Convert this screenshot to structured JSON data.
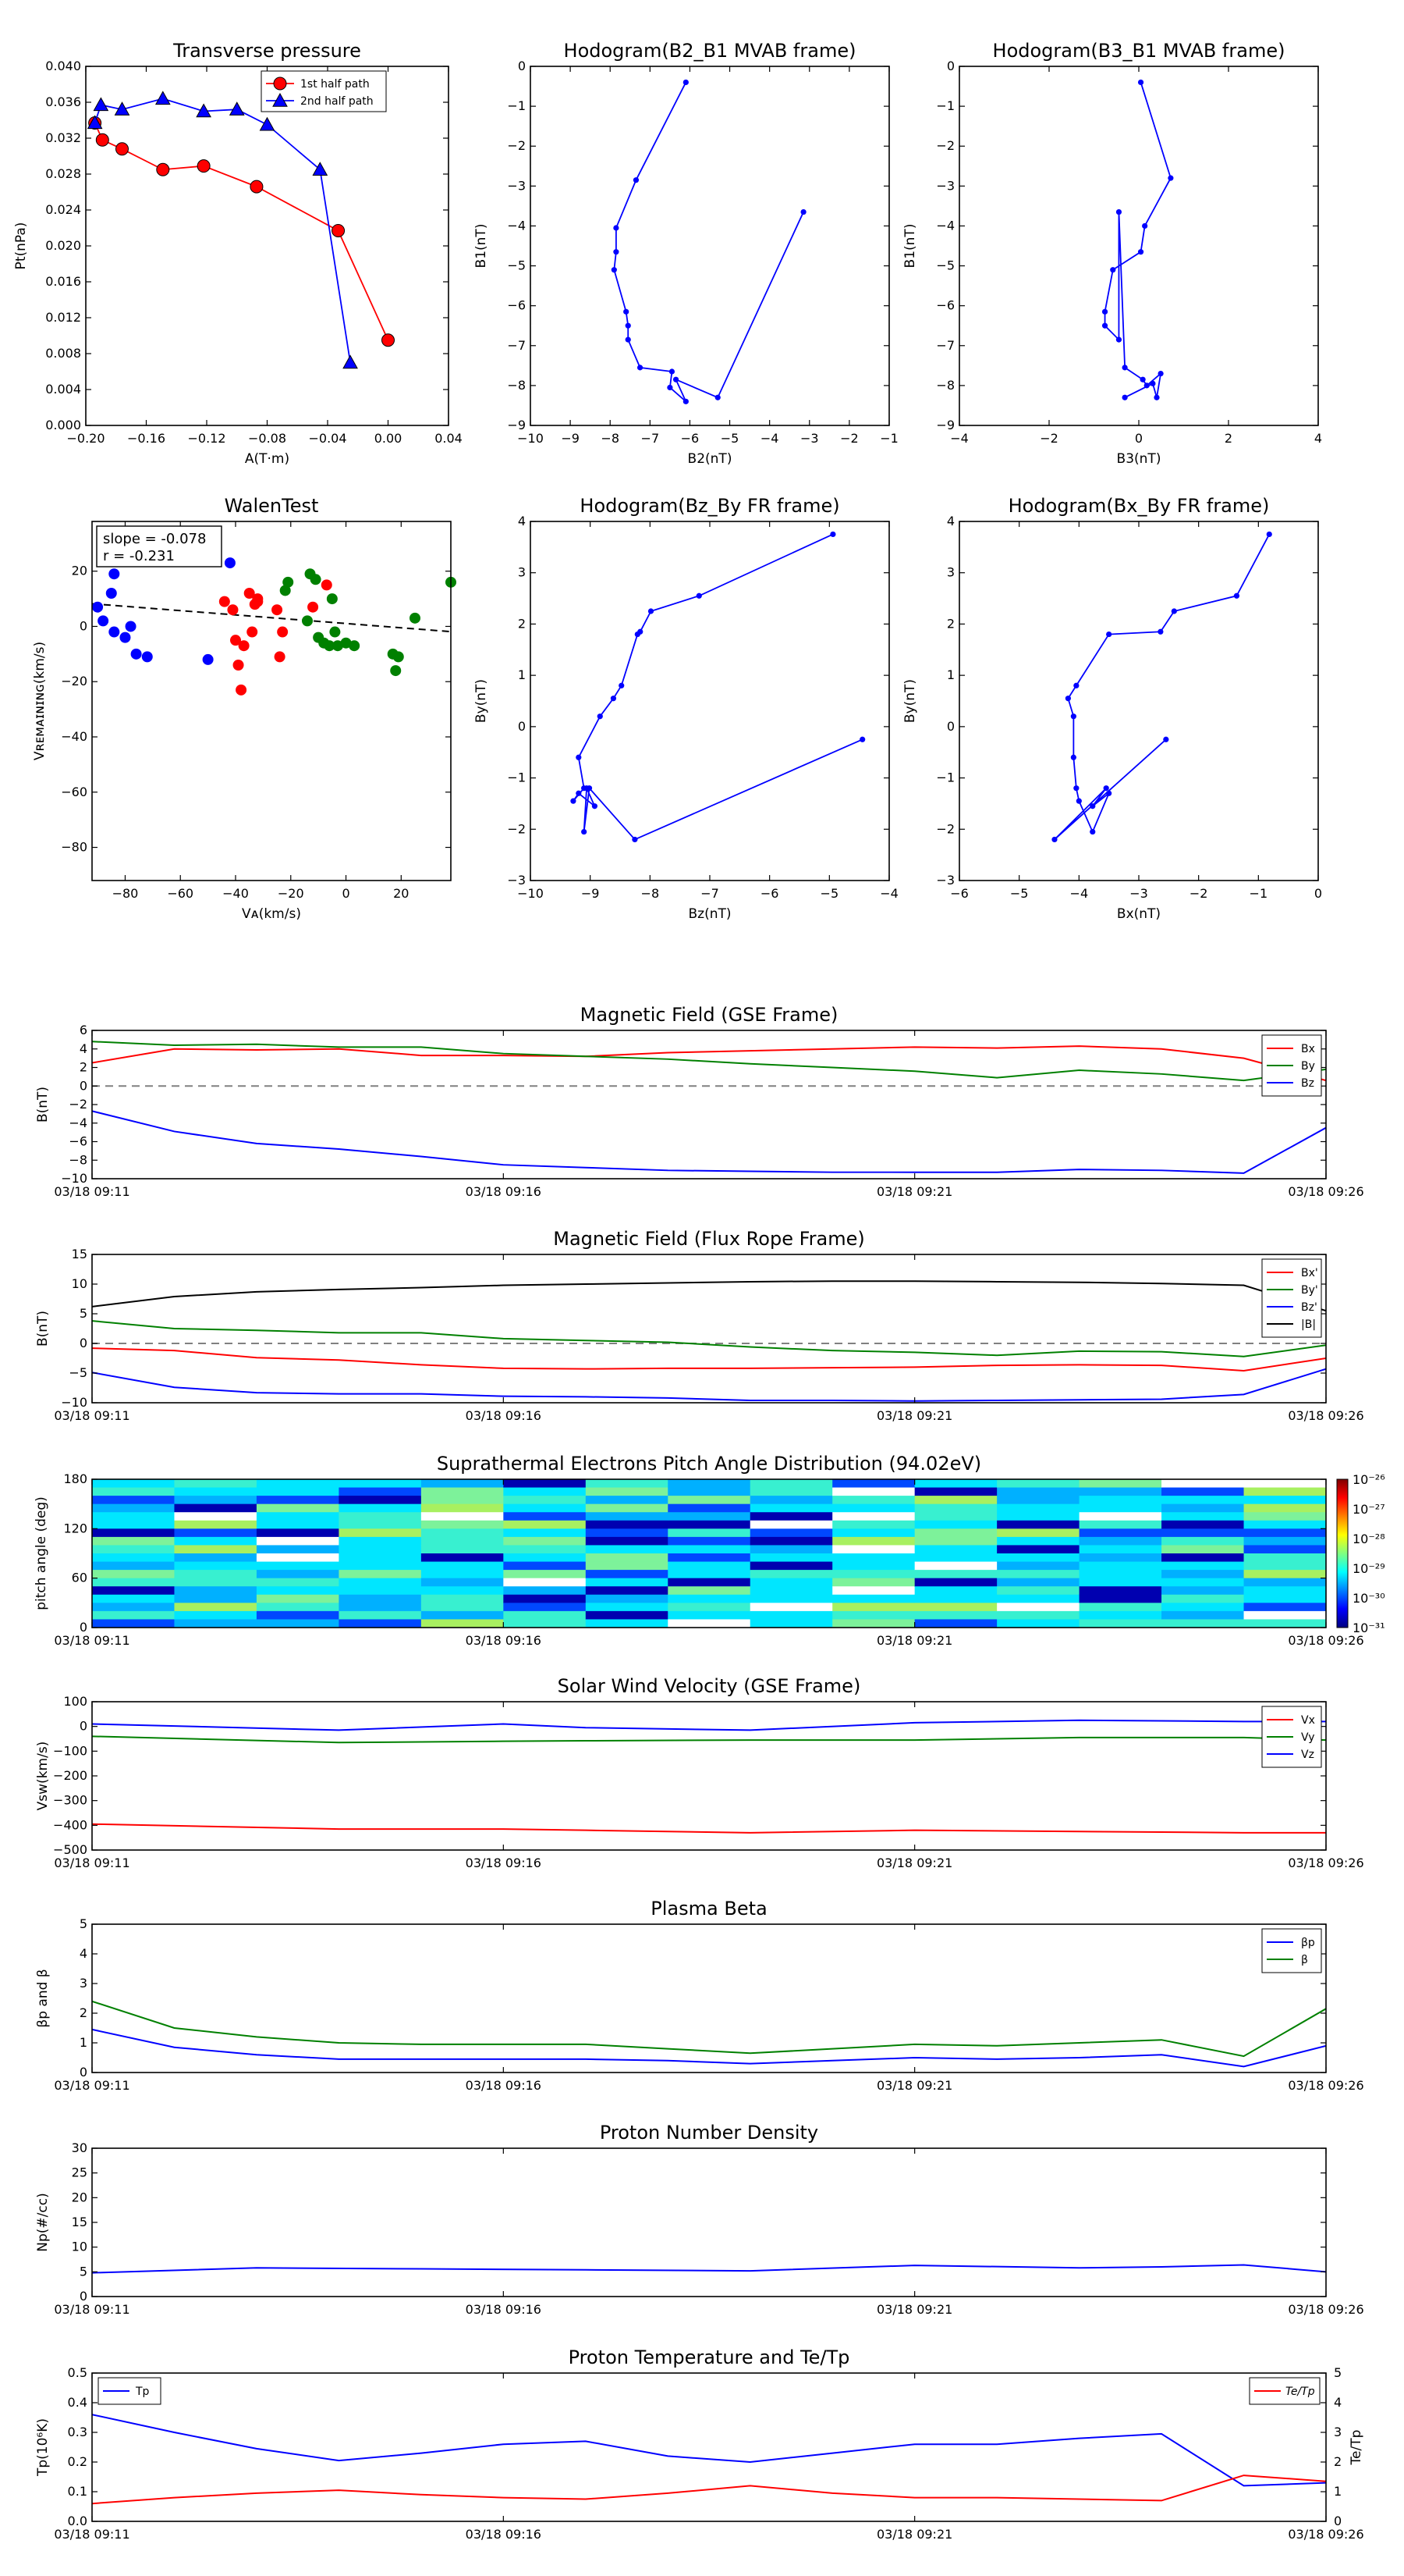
{
  "page": {
    "title": ""
  },
  "colors": {
    "red": "#ff0000",
    "green": "#008000",
    "blue": "#0000ff",
    "black": "#000000",
    "gray": "#808080"
  },
  "time_ticks": [
    "03/18 09:11",
    "03/18 09:16",
    "03/18 09:21",
    "03/18 09:26"
  ],
  "chart_data": [
    {
      "id": "tp",
      "type": "line",
      "title": "Transverse pressure",
      "xlabel": "A(T·m)",
      "ylabel": "Pt(nPa)",
      "xlim": [
        -0.2,
        0.04
      ],
      "ylim": [
        0,
        0.04
      ],
      "xticks": [
        "−0.20",
        "−0.16",
        "−0.12",
        "−0.08",
        "−0.04",
        "0.00",
        "0.04"
      ],
      "yticks": [
        "0.000",
        "0.004",
        "0.008",
        "0.012",
        "0.016",
        "0.020",
        "0.024",
        "0.028",
        "0.032",
        "0.036",
        "0.040"
      ],
      "legend": [
        "1st half path",
        "2nd half path"
      ],
      "series": [
        {
          "name": "1st half path",
          "color": "red",
          "marker": "circle",
          "x": [
            0.0,
            -0.033,
            -0.087,
            -0.122,
            -0.149,
            -0.176,
            -0.189,
            -0.194
          ],
          "y": [
            0.0095,
            0.0217,
            0.0266,
            0.0289,
            0.0285,
            0.0308,
            0.0318,
            0.0337
          ]
        },
        {
          "name": "2nd half path",
          "color": "blue",
          "marker": "triangle",
          "x": [
            -0.194,
            -0.19,
            -0.176,
            -0.149,
            -0.122,
            -0.1,
            -0.08,
            -0.045,
            -0.025
          ],
          "y": [
            0.0337,
            0.0357,
            0.0352,
            0.0364,
            0.035,
            0.0352,
            0.0335,
            0.0285,
            0.007
          ]
        }
      ]
    },
    {
      "id": "h1",
      "type": "line",
      "title": "Hodogram(B2_B1 MVAB frame)",
      "xlabel": "B2(nT)",
      "ylabel": "B1(nT)",
      "xlim": [
        -10,
        -1
      ],
      "ylim": [
        -9,
        0
      ],
      "xticks": [
        "−10",
        "−9",
        "−8",
        "−7",
        "−6",
        "−5",
        "−4",
        "−3",
        "−2",
        "−1"
      ],
      "yticks": [
        "−9",
        "−8",
        "−7",
        "−6",
        "−5",
        "−4",
        "−3",
        "−2",
        "−1",
        "0"
      ],
      "series": [
        {
          "color": "blue",
          "marker": "dot",
          "x": [
            -6.1,
            -7.35,
            -7.85,
            -7.85,
            -7.9,
            -7.6,
            -7.55,
            -7.55,
            -7.25,
            -6.45,
            -6.5,
            -6.1,
            -6.35,
            -5.3,
            -3.15
          ],
          "y": [
            -0.4,
            -2.85,
            -4.05,
            -4.65,
            -5.1,
            -6.15,
            -6.5,
            -6.85,
            -7.55,
            -7.65,
            -8.05,
            -8.4,
            -7.85,
            -8.3,
            -3.65
          ]
        }
      ]
    },
    {
      "id": "h2",
      "type": "line",
      "title": "Hodogram(B3_B1 MVAB frame)",
      "xlabel": "B3(nT)",
      "ylabel": "B1(nT)",
      "xlim": [
        -4.5,
        4.5
      ],
      "ylim": [
        -9,
        0
      ],
      "xticks": [
        "−4",
        "−2",
        "0",
        "2",
        "4"
      ],
      "yticks": [
        "−9",
        "−8",
        "−7",
        "−6",
        "−5",
        "−4",
        "−3",
        "−2",
        "−1",
        "0"
      ],
      "series": [
        {
          "color": "blue",
          "marker": "dot",
          "x": [
            0.05,
            0.8,
            0.15,
            0.05,
            -0.65,
            -0.85,
            -0.85,
            -0.5,
            -0.5,
            -0.35,
            0.1,
            0.2,
            0.55,
            0.45,
            0.35,
            -0.35
          ],
          "y": [
            -0.4,
            -2.8,
            -4.0,
            -4.65,
            -5.1,
            -6.15,
            -6.5,
            -6.85,
            -3.65,
            -7.55,
            -7.85,
            -8.0,
            -7.7,
            -8.3,
            -7.95,
            -8.3
          ]
        }
      ]
    },
    {
      "id": "walen",
      "type": "scatter",
      "title": "WalenTest",
      "xlabel": "Vᴀ(km/s)",
      "ylabel": "Vʀᴇᴍᴀɪɴɪɴɢ(km/s)",
      "xlim": [
        -92,
        38
      ],
      "ylim": [
        -92,
        38
      ],
      "xticks": [
        "−80",
        "−60",
        "−40",
        "−20",
        "0",
        "20"
      ],
      "yticks": [
        "−80",
        "−60",
        "−40",
        "−20",
        "0",
        "20"
      ],
      "annotation": [
        "slope = -0.078",
        "r = -0.231"
      ],
      "fit_line": {
        "x": [
          -92,
          38
        ],
        "y": [
          8.2,
          -1.9
        ]
      },
      "series": [
        {
          "color": "blue",
          "x": [
            -90,
            -88,
            -85,
            -84,
            -84,
            -80,
            -78,
            -76,
            -72,
            -50,
            -42
          ],
          "y": [
            7,
            2,
            12,
            19,
            -2,
            -4,
            0,
            -10,
            -11,
            -12,
            23
          ]
        },
        {
          "color": "red",
          "x": [
            -44,
            -41,
            -40,
            -39,
            -38,
            -37,
            -35,
            -34,
            -33,
            -32,
            -32,
            -25,
            -24,
            -23,
            -12,
            -7
          ],
          "y": [
            9,
            6,
            -5,
            -14,
            -23,
            -7,
            12,
            -2,
            8,
            10,
            9,
            6,
            -11,
            -2,
            7,
            15
          ]
        },
        {
          "color": "green",
          "x": [
            -22,
            -21,
            -14,
            -13,
            -11,
            -10,
            -8,
            -6,
            -5,
            -4,
            -3,
            0,
            3,
            17,
            18,
            19,
            25,
            38
          ],
          "y": [
            13,
            16,
            2,
            19,
            17,
            -4,
            -6,
            -7,
            10,
            -2,
            -7,
            -6,
            -7,
            -10,
            -16,
            -11,
            3,
            16
          ]
        }
      ]
    },
    {
      "id": "h3",
      "type": "line",
      "title": "Hodogram(Bz_By FR frame)",
      "xlabel": "Bz(nT)",
      "ylabel": "By(nT)",
      "xlim": [
        -10.5,
        -3.8
      ],
      "ylim": [
        -3,
        4
      ],
      "xticks": [
        "−10",
        "−9",
        "−8",
        "−7",
        "−6",
        "−5",
        "−4"
      ],
      "yticks": [
        "−3",
        "−2",
        "−1",
        "0",
        "1",
        "2",
        "3",
        "4"
      ],
      "series": [
        {
          "color": "blue",
          "marker": "dot",
          "x": [
            -4.85,
            -7.35,
            -8.25,
            -8.45,
            -8.5,
            -8.8,
            -8.95,
            -9.2,
            -9.6,
            -9.5,
            -9.7,
            -9.6,
            -9.3,
            -9.45,
            -9.5,
            -9.4,
            -8.55,
            -4.3
          ],
          "y": [
            3.75,
            2.55,
            2.25,
            1.85,
            1.8,
            0.8,
            0.55,
            0.2,
            -0.6,
            -1.2,
            -1.45,
            -1.3,
            -1.55,
            -1.2,
            -2.05,
            -1.2,
            -2.2,
            -0.25
          ]
        }
      ]
    },
    {
      "id": "h4",
      "type": "line",
      "title": "Hodogram(Bx_By FR frame)",
      "xlabel": "Bx(nT)",
      "ylabel": "By(nT)",
      "xlim": [
        -6.3,
        0.3
      ],
      "ylim": [
        -3,
        4
      ],
      "xticks": [
        "−6",
        "−5",
        "−4",
        "−3",
        "−2",
        "−1",
        "0"
      ],
      "yticks": [
        "−3",
        "−2",
        "−1",
        "0",
        "1",
        "2",
        "3",
        "4"
      ],
      "series": [
        {
          "color": "blue",
          "marker": "dot",
          "x": [
            -0.6,
            -1.2,
            -2.35,
            -2.6,
            -3.55,
            -4.15,
            -4.3,
            -4.2,
            -4.2,
            -4.15,
            -4.1,
            -3.85,
            -3.55,
            -3.85,
            -3.6,
            -4.55,
            -2.5
          ],
          "y": [
            3.75,
            2.55,
            2.25,
            1.85,
            1.8,
            0.8,
            0.55,
            0.2,
            -0.6,
            -1.2,
            -1.45,
            -2.05,
            -1.3,
            -1.55,
            -1.2,
            -2.2,
            -0.25
          ]
        }
      ]
    },
    {
      "id": "mag",
      "type": "line",
      "title": "Magnetic Field (GSE Frame)",
      "ylabel": "B(nT)",
      "xlim": [
        0,
        15
      ],
      "ylim": [
        -10,
        6
      ],
      "yticks": [
        "−10",
        "−8",
        "−6",
        "−4",
        "−2",
        "0",
        "2",
        "4",
        "6"
      ],
      "zero_line": true,
      "legend_pos": "top-right",
      "x": [
        0,
        1,
        2,
        3,
        4,
        5,
        6,
        7,
        8,
        9,
        10,
        11,
        12,
        13,
        14,
        15
      ],
      "series": [
        {
          "name": "Bx",
          "color": "red",
          "values": [
            2.5,
            4.0,
            3.9,
            4.0,
            3.3,
            3.3,
            3.2,
            3.6,
            3.8,
            4.0,
            4.2,
            4.1,
            4.3,
            4.0,
            3.0,
            0.6
          ]
        },
        {
          "name": "By",
          "color": "green",
          "values": [
            4.8,
            4.4,
            4.5,
            4.2,
            4.2,
            3.5,
            3.2,
            2.9,
            2.4,
            2.0,
            1.6,
            0.9,
            1.7,
            1.3,
            0.6,
            1.8
          ]
        },
        {
          "name": "Bz",
          "color": "blue",
          "values": [
            -2.7,
            -4.9,
            -6.2,
            -6.8,
            -7.6,
            -8.5,
            -8.8,
            -9.1,
            -9.2,
            -9.3,
            -9.3,
            -9.3,
            -9.0,
            -9.1,
            -9.4,
            -4.5
          ]
        }
      ]
    },
    {
      "id": "fr",
      "type": "line",
      "title": "Magnetic Field (Flux Rope Frame)",
      "ylabel": "B(nT)",
      "xlim": [
        0,
        15
      ],
      "ylim": [
        -10,
        15
      ],
      "yticks": [
        "−10",
        "−5",
        "0",
        "5",
        "10",
        "15"
      ],
      "zero_line": true,
      "legend_pos": "top-right",
      "x": [
        0,
        1,
        2,
        3,
        4,
        5,
        6,
        7,
        8,
        9,
        10,
        11,
        12,
        13,
        14,
        15
      ],
      "series": [
        {
          "name": "Bx'",
          "color": "red",
          "values": [
            -0.8,
            -1.2,
            -2.4,
            -2.8,
            -3.6,
            -4.2,
            -4.3,
            -4.2,
            -4.2,
            -4.1,
            -4.0,
            -3.7,
            -3.6,
            -3.7,
            -4.6,
            -2.5
          ]
        },
        {
          "name": "By'",
          "color": "green",
          "values": [
            3.8,
            2.5,
            2.2,
            1.8,
            1.8,
            0.8,
            0.5,
            0.2,
            -0.6,
            -1.2,
            -1.5,
            -2.0,
            -1.3,
            -1.4,
            -2.2,
            -0.3
          ]
        },
        {
          "name": "Bz'",
          "color": "blue",
          "values": [
            -4.9,
            -7.4,
            -8.3,
            -8.5,
            -8.5,
            -8.9,
            -9.0,
            -9.2,
            -9.6,
            -9.6,
            -9.7,
            -9.6,
            -9.5,
            -9.4,
            -8.6,
            -4.3
          ]
        },
        {
          "name": "|B|",
          "color": "black",
          "values": [
            6.2,
            7.9,
            8.7,
            9.1,
            9.4,
            9.8,
            10.0,
            10.2,
            10.4,
            10.5,
            10.5,
            10.4,
            10.3,
            10.1,
            9.8,
            5.5
          ]
        }
      ]
    },
    {
      "id": "pad",
      "type": "heatmap",
      "title": "Suprathermal Electrons Pitch Angle Distribution (94.02eV)",
      "ylabel": "pitch angle (deg)",
      "xlim": [
        0,
        15
      ],
      "ylim": [
        0,
        180
      ],
      "yticks": [
        "0",
        "60",
        "120",
        "180"
      ],
      "colorbar_ticks": [
        "10⁻²⁶",
        "10⁻²⁷",
        "10⁻²⁸",
        "10⁻²⁹",
        "10⁻³⁰",
        "10⁻³¹"
      ],
      "columns": 15,
      "rows": 18
    },
    {
      "id": "vsw",
      "type": "line",
      "title": "Solar Wind Velocity (GSE Frame)",
      "ylabel": "Vsw(km/s)",
      "xlim": [
        0,
        15
      ],
      "ylim": [
        -500,
        100
      ],
      "yticks": [
        "−500",
        "−400",
        "−300",
        "−200",
        "−100",
        "0",
        "100"
      ],
      "legend_pos": "top-right",
      "x": [
        0,
        3,
        5,
        6,
        8,
        10,
        12,
        14,
        15
      ],
      "series": [
        {
          "name": "Vx",
          "color": "red",
          "values": [
            -395,
            -415,
            -415,
            -420,
            -430,
            -420,
            -425,
            -430,
            -430
          ]
        },
        {
          "name": "Vy",
          "color": "green",
          "values": [
            -40,
            -65,
            -60,
            -58,
            -55,
            -55,
            -45,
            -45,
            -55
          ]
        },
        {
          "name": "Vz",
          "color": "blue",
          "values": [
            10,
            -15,
            10,
            -5,
            -15,
            15,
            25,
            20,
            20
          ]
        }
      ]
    },
    {
      "id": "beta",
      "type": "line",
      "title": "Plasma Beta",
      "ylabel": "βp and β",
      "xlim": [
        0,
        15
      ],
      "ylim": [
        0,
        5
      ],
      "yticks": [
        "0",
        "1",
        "2",
        "3",
        "4",
        "5"
      ],
      "legend_pos": "top-right",
      "x": [
        0,
        1,
        2,
        3,
        4,
        5,
        6,
        7,
        8,
        9,
        10,
        11,
        12,
        13,
        14,
        15
      ],
      "series": [
        {
          "name": "βp",
          "color": "blue",
          "values": [
            1.45,
            0.85,
            0.6,
            0.45,
            0.45,
            0.45,
            0.45,
            0.4,
            0.3,
            0.4,
            0.5,
            0.45,
            0.5,
            0.6,
            0.2,
            0.9
          ]
        },
        {
          "name": "β",
          "color": "green",
          "values": [
            2.4,
            1.5,
            1.2,
            1.0,
            0.95,
            0.95,
            0.95,
            0.8,
            0.65,
            0.8,
            0.95,
            0.9,
            1.0,
            1.1,
            0.55,
            2.15
          ]
        }
      ]
    },
    {
      "id": "np",
      "type": "line",
      "title": "Proton Number Density",
      "ylabel": "Np(#/cc)",
      "xlim": [
        0,
        15
      ],
      "ylim": [
        0,
        30
      ],
      "yticks": [
        "0",
        "5",
        "10",
        "15",
        "20",
        "25",
        "30"
      ],
      "x": [
        0,
        2,
        4,
        6,
        8,
        10,
        12,
        13,
        14,
        15
      ],
      "series": [
        {
          "color": "blue",
          "values": [
            4.8,
            5.8,
            5.6,
            5.4,
            5.2,
            6.3,
            5.8,
            6.0,
            6.4,
            5.0
          ]
        }
      ]
    },
    {
      "id": "tpp",
      "type": "line",
      "title": "Proton Temperature and Te/Tp",
      "ylabel": "Tp(10⁶K)",
      "ylabel_right": "Te/Tp",
      "xlim": [
        0,
        15
      ],
      "ylim": [
        0,
        0.5
      ],
      "ylim_right": [
        0,
        5
      ],
      "yticks": [
        "0.0",
        "0.1",
        "0.2",
        "0.3",
        "0.4",
        "0.5"
      ],
      "yticks_right": [
        "0",
        "1",
        "2",
        "3",
        "4",
        "5"
      ],
      "legend_left": [
        "Tp"
      ],
      "legend_right": [
        "Te/Tp"
      ],
      "x": [
        0,
        1,
        2,
        3,
        4,
        5,
        6,
        7,
        8,
        9,
        10,
        11,
        12,
        13,
        14,
        15
      ],
      "series": [
        {
          "name": "Tp",
          "color": "blue",
          "axis": "left",
          "values": [
            0.36,
            0.3,
            0.245,
            0.205,
            0.23,
            0.26,
            0.27,
            0.22,
            0.2,
            0.23,
            0.26,
            0.26,
            0.28,
            0.295,
            0.12,
            0.13
          ]
        },
        {
          "name": "Te/Tp",
          "color": "red",
          "axis": "right",
          "values": [
            0.6,
            0.8,
            0.95,
            1.05,
            0.9,
            0.8,
            0.75,
            0.95,
            1.2,
            0.95,
            0.8,
            0.8,
            0.75,
            0.7,
            1.55,
            1.35
          ]
        }
      ]
    }
  ]
}
